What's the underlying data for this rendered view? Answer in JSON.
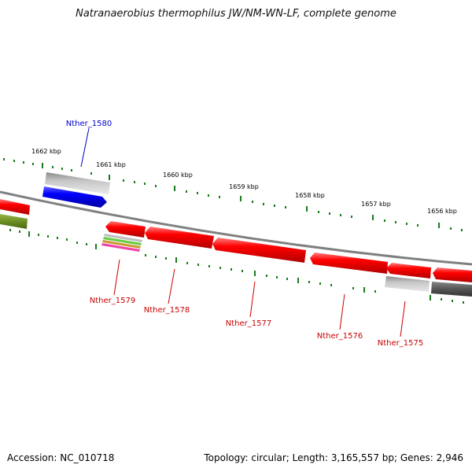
{
  "title": "Natranaerobius thermophilus JW/NM-WN-LF, complete genome",
  "footer": {
    "accession": "Accession: NC_010718",
    "summary": "Topology: circular; Length: 3,165,557 bp; Genes: 2,946"
  },
  "ticks": [
    "1662 kbp",
    "1661 kbp",
    "1660 kbp",
    "1659 kbp",
    "1658 kbp",
    "1657 kbp",
    "1656 kbp"
  ],
  "gene_labels": {
    "nther_1580": "Nther_1580",
    "nther_1579": "Nther_1579",
    "nther_1578": "Nther_1578",
    "nther_1577": "Nther_1577",
    "nther_1576": "Nther_1576",
    "nther_1575": "Nther_1575"
  },
  "colors": {
    "tick": "#1a7a1a",
    "backbone": "#808080",
    "forward_label": "#0000cc",
    "reverse_label": "#cc0000",
    "gene_red": "#ff0000",
    "gene_blue": "#0000ff",
    "gene_grey": "#b0b0b0",
    "gene_olive": "#6b8e23"
  }
}
